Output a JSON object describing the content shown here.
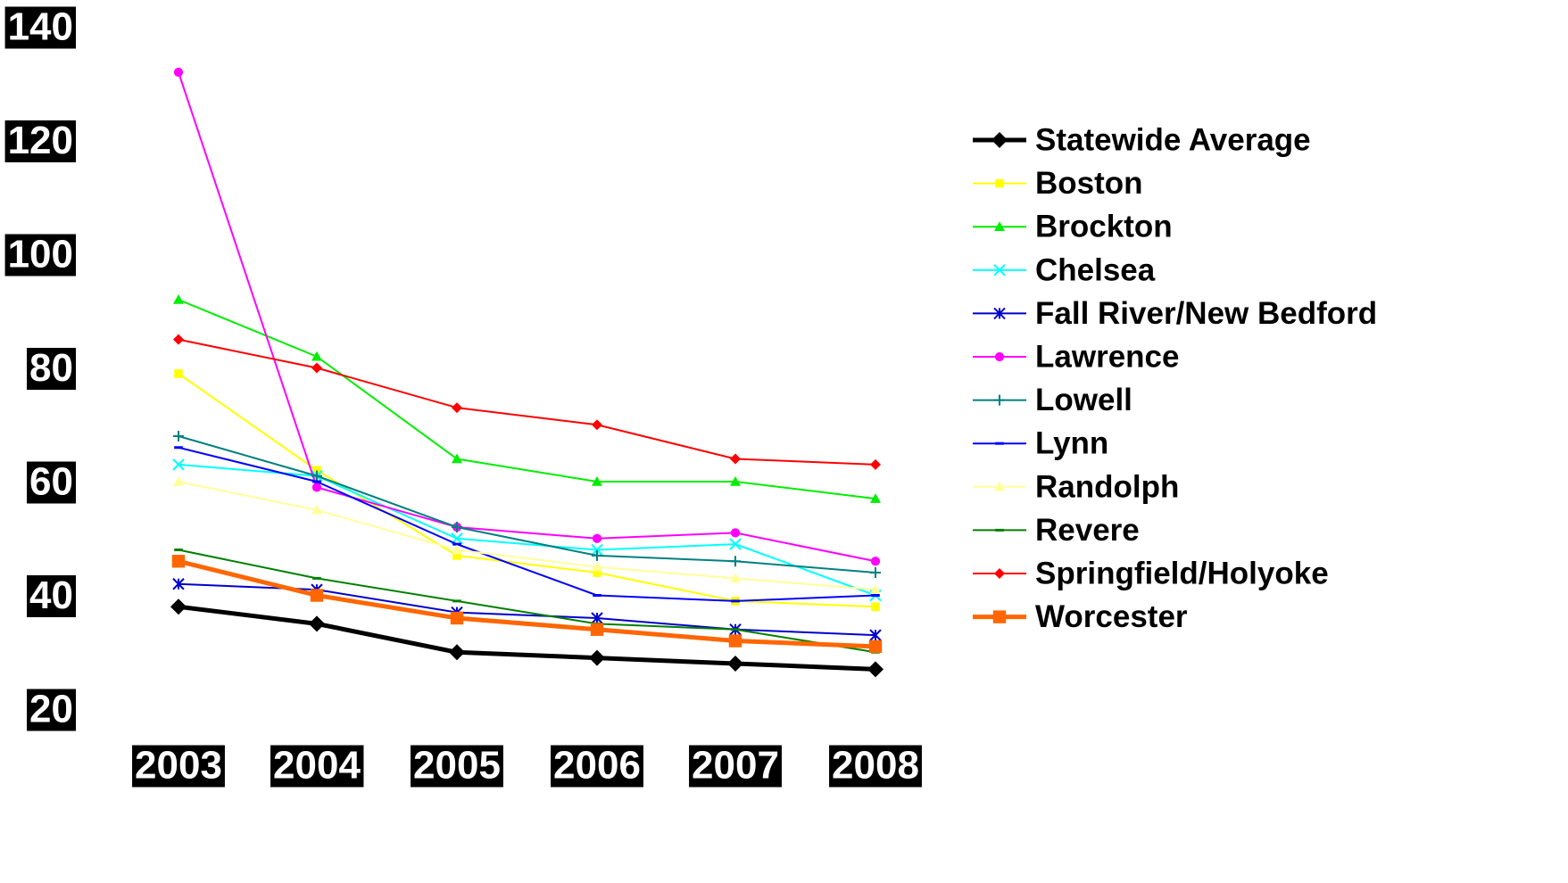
{
  "chart_data": {
    "type": "line",
    "title": "",
    "xlabel": "",
    "ylabel": "",
    "categories": [
      "2003",
      "2004",
      "2005",
      "2006",
      "2007",
      "2008"
    ],
    "ylim": [
      20,
      140
    ],
    "yticks": [
      20,
      40,
      60,
      80,
      100,
      120,
      140
    ],
    "grid": false,
    "legend_position": "right",
    "series": [
      {
        "name": "Statewide Average",
        "color": "#000000",
        "marker": "diamond",
        "width": 5,
        "values": [
          38,
          35,
          30,
          29,
          28,
          27
        ]
      },
      {
        "name": "Boston",
        "color": "#ffff00",
        "marker": "square",
        "width": 2,
        "values": [
          79,
          62,
          47,
          44,
          39,
          38
        ]
      },
      {
        "name": "Brockton",
        "color": "#00ee00",
        "marker": "triangle",
        "width": 2,
        "values": [
          92,
          82,
          64,
          60,
          60,
          57
        ]
      },
      {
        "name": "Chelsea",
        "color": "#00ffff",
        "marker": "x",
        "width": 2,
        "values": [
          63,
          61,
          50,
          48,
          49,
          40
        ]
      },
      {
        "name": "Fall River/New Bedford",
        "color": "#0000cc",
        "marker": "asterisk",
        "width": 2,
        "values": [
          42,
          41,
          37,
          36,
          34,
          33
        ]
      },
      {
        "name": "Lawrence",
        "color": "#ff00ff",
        "marker": "circle",
        "width": 2,
        "values": [
          132,
          59,
          52,
          50,
          51,
          46
        ]
      },
      {
        "name": "Lowell",
        "color": "#008080",
        "marker": "plus",
        "width": 2,
        "values": [
          68,
          61,
          52,
          47,
          46,
          44
        ]
      },
      {
        "name": "Lynn",
        "color": "#0000ff",
        "marker": "dash",
        "width": 2,
        "values": [
          66,
          60,
          49,
          40,
          39,
          40
        ]
      },
      {
        "name": "Randolph",
        "color": "#ffff99",
        "marker": "triangle",
        "width": 2,
        "values": [
          60,
          55,
          48,
          45,
          43,
          41
        ]
      },
      {
        "name": "Revere",
        "color": "#008000",
        "marker": "dash",
        "width": 2,
        "values": [
          48,
          43,
          39,
          35,
          34,
          30
        ]
      },
      {
        "name": "Springfield/Holyoke",
        "color": "#ff0000",
        "marker": "diamond",
        "width": 2,
        "values": [
          85,
          80,
          73,
          70,
          64,
          63
        ]
      },
      {
        "name": "Worcester",
        "color": "#ff6600",
        "marker": "square",
        "width": 5,
        "values": [
          46,
          40,
          36,
          34,
          32,
          31
        ]
      }
    ]
  }
}
